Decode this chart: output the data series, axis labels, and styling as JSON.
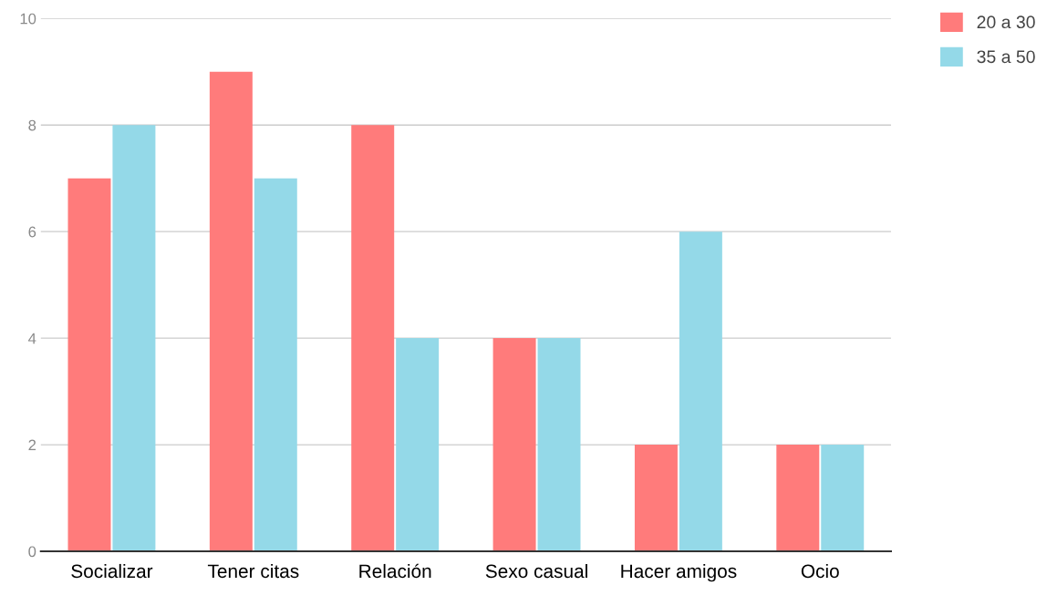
{
  "chart_data": {
    "type": "bar",
    "categories": [
      "Socializar",
      "Tener citas",
      "Relación",
      "Sexo casual",
      "Hacer amigos",
      "Ocio"
    ],
    "series": [
      {
        "name": "20 a 30",
        "color": "#ff7b7b",
        "values": [
          7,
          9,
          8,
          4,
          2,
          2
        ]
      },
      {
        "name": "35 a 50",
        "color": "#94d9e8",
        "values": [
          8,
          7,
          4,
          4,
          6,
          2
        ]
      }
    ],
    "ylim": [
      0,
      10
    ],
    "yticks": [
      0,
      2,
      4,
      6,
      8,
      10
    ],
    "grid": "y",
    "legend": "top right"
  }
}
